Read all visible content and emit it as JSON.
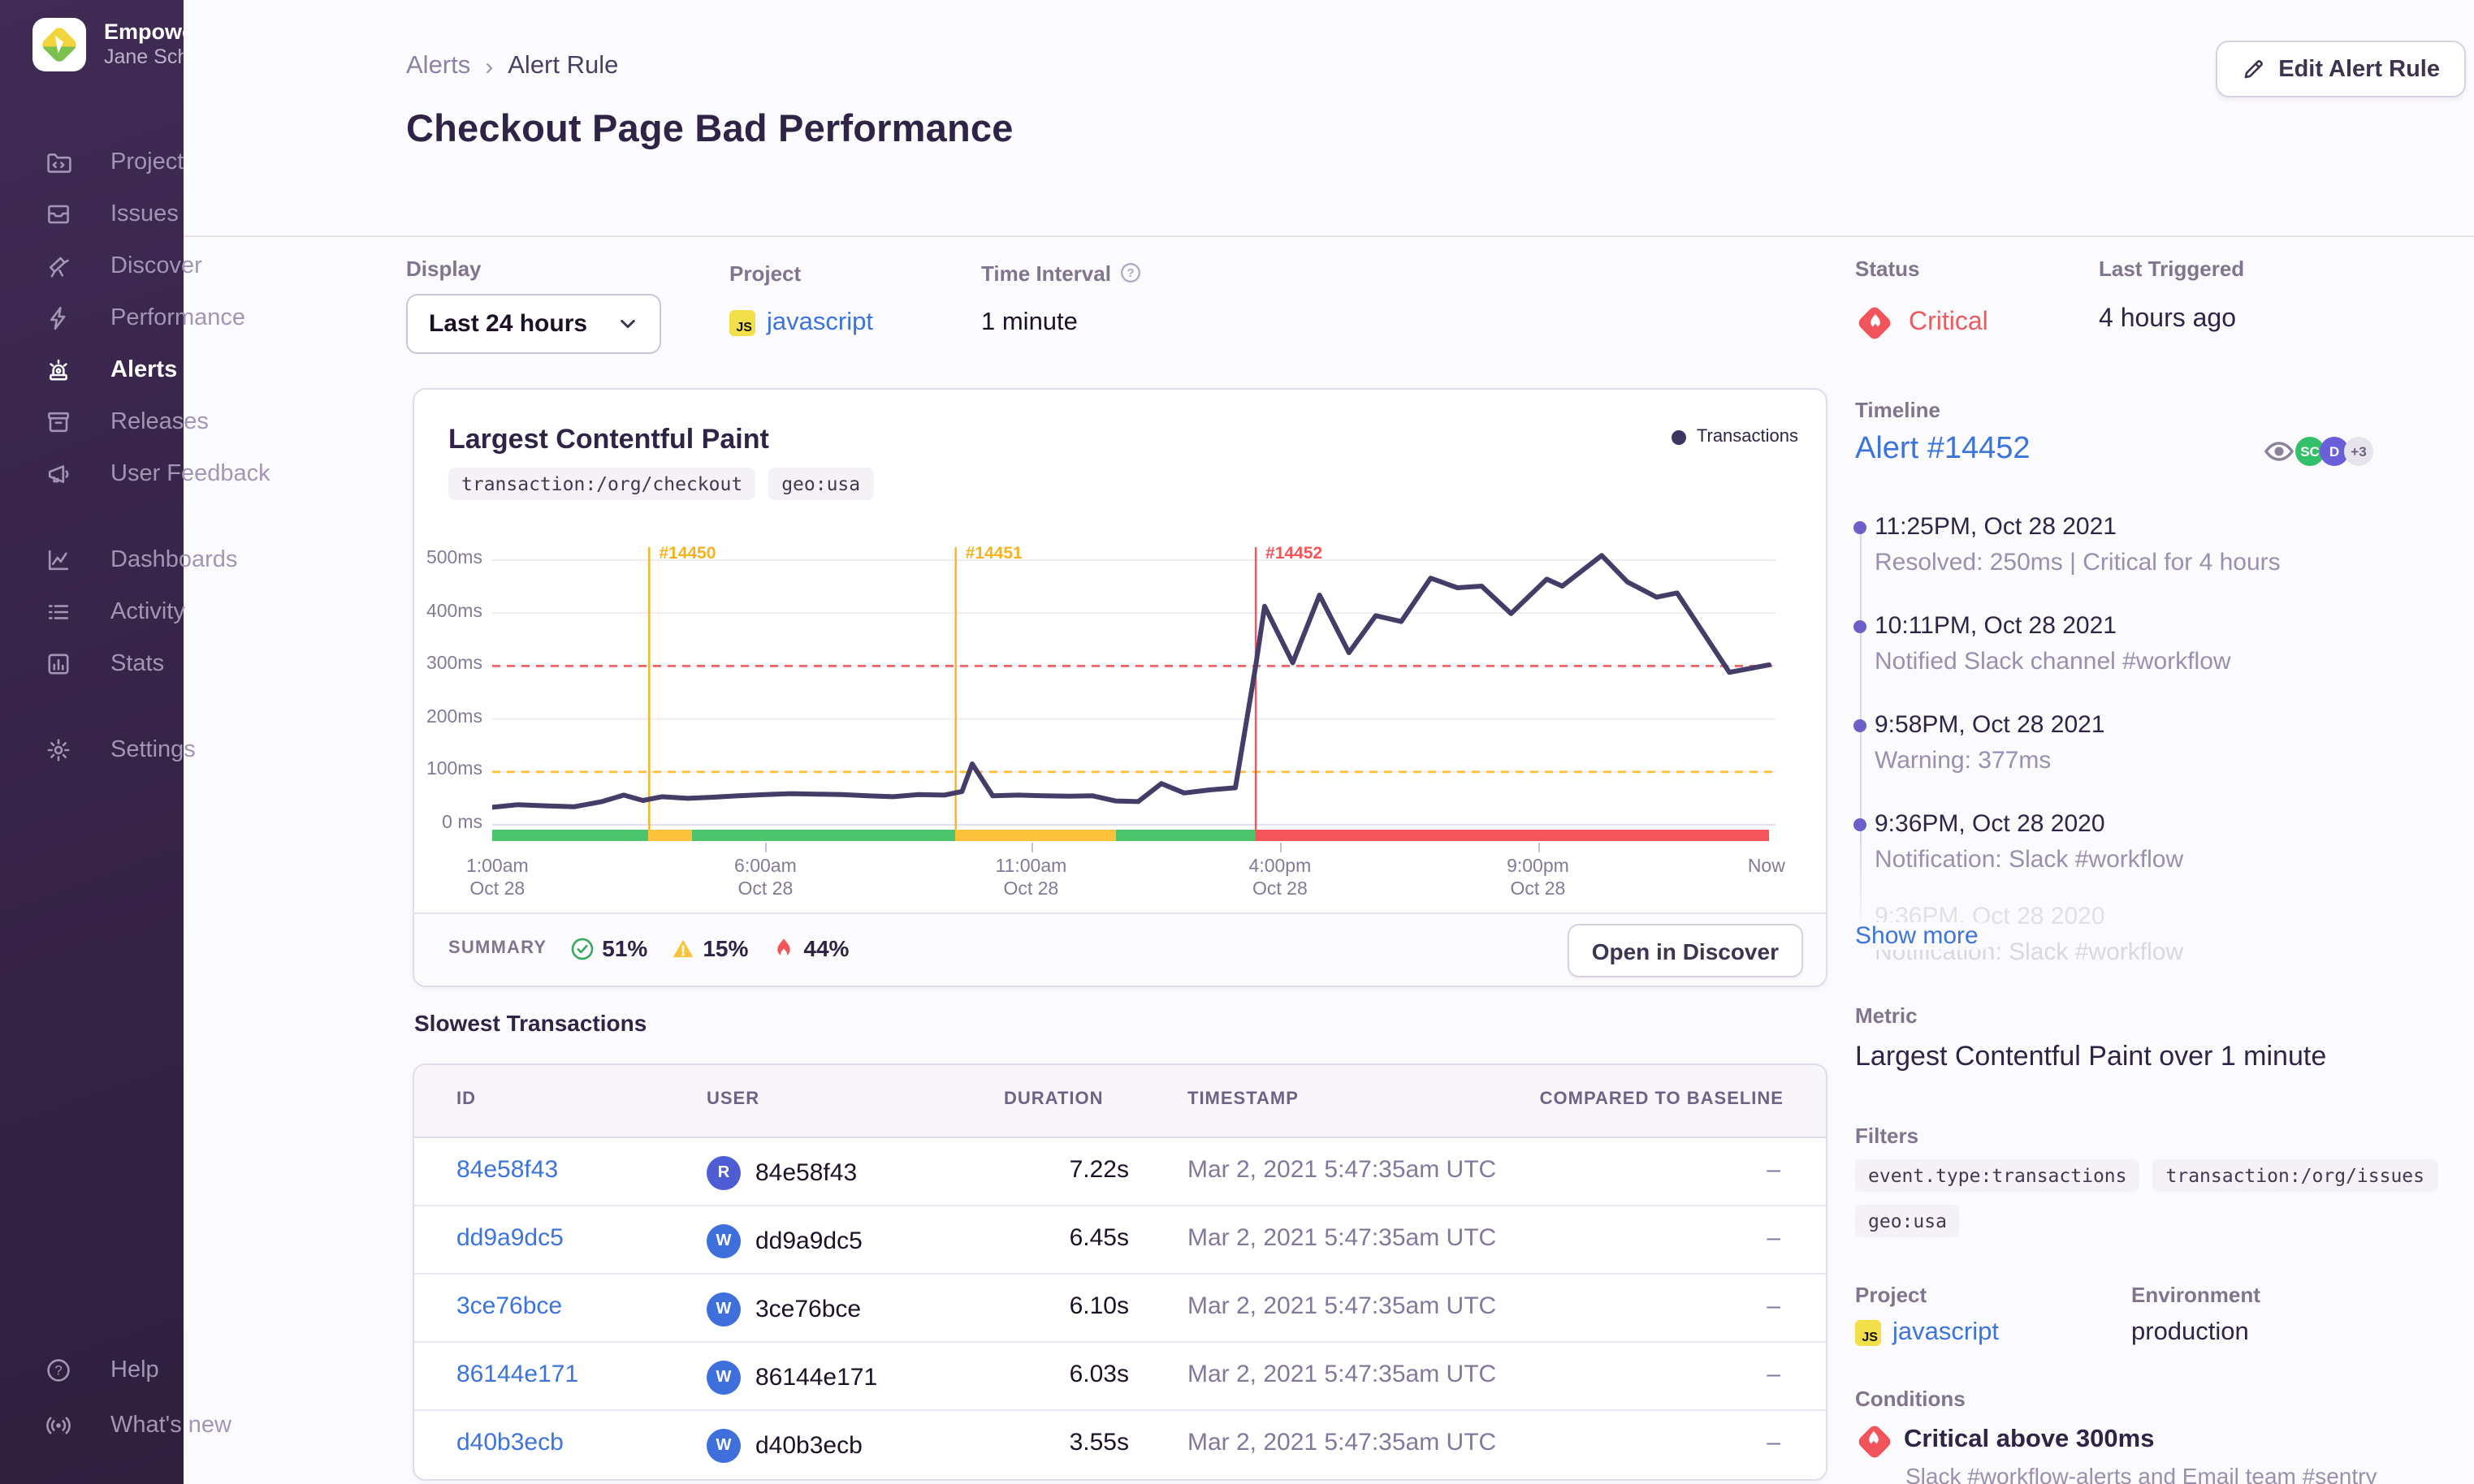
{
  "sidebar": {
    "org": "Empower Plant",
    "user": "Jane Schmidt",
    "items": [
      {
        "label": "Projects",
        "icon": "folder-code-icon",
        "active": false
      },
      {
        "label": "Issues",
        "icon": "issues-stack-icon",
        "active": false
      },
      {
        "label": "Discover",
        "icon": "telescope-icon",
        "active": false
      },
      {
        "label": "Performance",
        "icon": "lightning-icon",
        "active": false
      },
      {
        "label": "Alerts",
        "icon": "siren-icon",
        "active": true
      },
      {
        "label": "Releases",
        "icon": "archive-icon",
        "active": false
      },
      {
        "label": "User Feedback",
        "icon": "megaphone-icon",
        "active": false
      },
      {
        "label": "Dashboards",
        "icon": "line-chart-icon",
        "active": false
      },
      {
        "label": "Activity",
        "icon": "list-icon",
        "active": false
      },
      {
        "label": "Stats",
        "icon": "bar-chart-icon",
        "active": false
      },
      {
        "label": "Settings",
        "icon": "gear-icon",
        "active": false
      }
    ],
    "footer_items": [
      {
        "label": "Help",
        "icon": "help-circle-icon"
      },
      {
        "label": "What's new",
        "icon": "broadcast-icon"
      }
    ]
  },
  "breadcrumb": {
    "parent": "Alerts",
    "current": "Alert Rule"
  },
  "page": {
    "title": "Checkout Page Bad Performance",
    "edit_button": "Edit Alert Rule"
  },
  "controls": {
    "display_label": "Display",
    "display_value": "Last 24 hours",
    "project_label": "Project",
    "project_value": "javascript",
    "interval_label": "Time Interval",
    "interval_value": "1 minute"
  },
  "status": {
    "label": "Status",
    "value": "Critical",
    "color": "#ef5a5e",
    "last_triggered_label": "Last Triggered",
    "last_triggered_value": "4 hours ago"
  },
  "chart_card": {
    "title": "Largest Contentful Paint",
    "tags": [
      "transaction:/org/checkout",
      "geo:usa"
    ],
    "legend": "Transactions",
    "summary_label": "SUMMARY",
    "summary": [
      {
        "icon": "check-circle-icon",
        "value": "51%"
      },
      {
        "icon": "warning-triangle-icon",
        "value": "15%"
      },
      {
        "icon": "fire-icon",
        "value": "44%"
      }
    ],
    "open_button": "Open in Discover"
  },
  "chart_data": {
    "type": "line",
    "title": "Largest Contentful Paint",
    "series_name": "Transactions",
    "unit": "ms",
    "ylim": [
      0,
      545
    ],
    "line_color": "#453c67",
    "grid": true,
    "y_ticks": [
      {
        "value": 0,
        "label": "0 ms"
      },
      {
        "value": 100,
        "label": "100ms"
      },
      {
        "value": 200,
        "label": "200ms"
      },
      {
        "value": 300,
        "label": "300ms"
      },
      {
        "value": 400,
        "label": "400ms"
      },
      {
        "value": 500,
        "label": "500ms"
      }
    ],
    "x_ticks": [
      {
        "frac": 0.004,
        "time": "1:00am",
        "date": "Oct 28",
        "mark": false
      },
      {
        "frac": 0.214,
        "time": "6:00am",
        "date": "Oct 28",
        "mark": true
      },
      {
        "frac": 0.422,
        "time": "11:00am",
        "date": "Oct 28",
        "mark": true
      },
      {
        "frac": 0.617,
        "time": "4:00pm",
        "date": "Oct 28",
        "mark": true
      },
      {
        "frac": 0.819,
        "time": "9:00pm",
        "date": "Oct 28",
        "mark": true
      },
      {
        "frac": 0.998,
        "time": "Now",
        "date": "",
        "mark": false
      }
    ],
    "thresholds": [
      {
        "label": "critical",
        "value": 300,
        "color": "#ee6465"
      },
      {
        "label": "warning",
        "value": 100,
        "color": "#fdc23b"
      }
    ],
    "incidents": [
      {
        "id": "#14450",
        "frac": 0.123,
        "color": "#f6b31b"
      },
      {
        "id": "#14451",
        "frac": 0.363,
        "color": "#f6b31b"
      },
      {
        "id": "#14452",
        "frac": 0.598,
        "color": "#f55459"
      }
    ],
    "status_segments": [
      {
        "from": 0.0,
        "to": 0.122,
        "color": "#4cc46e"
      },
      {
        "from": 0.122,
        "to": 0.157,
        "color": "#fdc23b"
      },
      {
        "from": 0.157,
        "to": 0.363,
        "color": "#4cc46e"
      },
      {
        "from": 0.363,
        "to": 0.489,
        "color": "#fdc23b"
      },
      {
        "from": 0.489,
        "to": 0.598,
        "color": "#4cc46e"
      },
      {
        "from": 0.598,
        "to": 1.0,
        "color": "#f5555a"
      }
    ],
    "points": [
      [
        0.0,
        33
      ],
      [
        0.02,
        38
      ],
      [
        0.042,
        36
      ],
      [
        0.064,
        34
      ],
      [
        0.086,
        44
      ],
      [
        0.103,
        56
      ],
      [
        0.118,
        46
      ],
      [
        0.133,
        53
      ],
      [
        0.153,
        50
      ],
      [
        0.173,
        52
      ],
      [
        0.193,
        55
      ],
      [
        0.214,
        57
      ],
      [
        0.234,
        59
      ],
      [
        0.254,
        58
      ],
      [
        0.274,
        57
      ],
      [
        0.294,
        55
      ],
      [
        0.314,
        53
      ],
      [
        0.334,
        57
      ],
      [
        0.354,
        56
      ],
      [
        0.368,
        63
      ],
      [
        0.376,
        115
      ],
      [
        0.392,
        55
      ],
      [
        0.412,
        56
      ],
      [
        0.432,
        55
      ],
      [
        0.452,
        54
      ],
      [
        0.47,
        55
      ],
      [
        0.488,
        45
      ],
      [
        0.506,
        44
      ],
      [
        0.524,
        78
      ],
      [
        0.542,
        60
      ],
      [
        0.562,
        66
      ],
      [
        0.582,
        70
      ],
      [
        0.598,
        300
      ],
      [
        0.605,
        413
      ],
      [
        0.627,
        306
      ],
      [
        0.648,
        434
      ],
      [
        0.671,
        325
      ],
      [
        0.692,
        395
      ],
      [
        0.712,
        384
      ],
      [
        0.735,
        466
      ],
      [
        0.756,
        448
      ],
      [
        0.775,
        451
      ],
      [
        0.798,
        399
      ],
      [
        0.826,
        464
      ],
      [
        0.838,
        451
      ],
      [
        0.869,
        509
      ],
      [
        0.889,
        459
      ],
      [
        0.912,
        430
      ],
      [
        0.928,
        438
      ],
      [
        0.969,
        288
      ],
      [
        1.0,
        302
      ]
    ]
  },
  "transactions": {
    "heading": "Slowest Transactions",
    "columns": [
      "ID",
      "USER",
      "DURATION",
      "TIMESTAMP",
      "COMPARED TO BASELINE"
    ],
    "rows": [
      {
        "id": "84e58f43",
        "avatar": "R",
        "avatar_color": "#4e5dd3",
        "user": "84e58f43",
        "duration": "7.22s",
        "timestamp": "Mar 2, 2021 5:47:35am UTC",
        "baseline": "–"
      },
      {
        "id": "dd9a9dc5",
        "avatar": "W",
        "avatar_color": "#3e6fdb",
        "user": "dd9a9dc5",
        "duration": "6.45s",
        "timestamp": "Mar 2, 2021 5:47:35am UTC",
        "baseline": "–"
      },
      {
        "id": "3ce76bce",
        "avatar": "W",
        "avatar_color": "#3e6fdb",
        "user": "3ce76bce",
        "duration": "6.10s",
        "timestamp": "Mar 2, 2021 5:47:35am UTC",
        "baseline": "–"
      },
      {
        "id": "86144e171",
        "avatar": "W",
        "avatar_color": "#3e6fdb",
        "user": "86144e171",
        "duration": "6.03s",
        "timestamp": "Mar 2, 2021 5:47:35am UTC",
        "baseline": "–"
      },
      {
        "id": "d40b3ecb",
        "avatar": "W",
        "avatar_color": "#3e6fdb",
        "user": "d40b3ecb",
        "duration": "3.55s",
        "timestamp": "Mar 2, 2021 5:47:35am UTC",
        "baseline": "–"
      }
    ]
  },
  "timeline": {
    "label": "Timeline",
    "alert_link": "Alert #14452",
    "viewers": [
      {
        "initials": "SC",
        "color": "#34c06a"
      },
      {
        "initials": "D",
        "color": "#6a5ed9"
      },
      {
        "initials": "+3",
        "color": "#e8e4ee"
      }
    ],
    "entries": [
      {
        "time": "11:25PM, Oct 28 2021",
        "desc": "Resolved: 250ms | Critical for 4 hours"
      },
      {
        "time": "10:11PM, Oct 28 2021",
        "desc": "Notified Slack channel #workflow"
      },
      {
        "time": "9:58PM, Oct 28 2021",
        "desc": "Warning: 377ms"
      },
      {
        "time": "9:36PM, Oct 28 2020",
        "desc": "Notification: Slack #workflow"
      },
      {
        "time": "9:36PM, Oct 28 2020",
        "desc": "Notification: Slack #workflow"
      }
    ],
    "show_more": "Show more"
  },
  "details": {
    "metric_label": "Metric",
    "metric_value": "Largest Contentful Paint over 1 minute",
    "filters_label": "Filters",
    "filter_tags": [
      "event.type:transactions",
      "transaction:/org/issues",
      "geo:usa"
    ],
    "project_label": "Project",
    "project_value": "javascript",
    "environment_label": "Environment",
    "environment_value": "production",
    "conditions_label": "Conditions",
    "condition_title": "Critical above 300ms",
    "condition_subtitle": "Slack #workflow-alerts and Email team #sentry"
  }
}
